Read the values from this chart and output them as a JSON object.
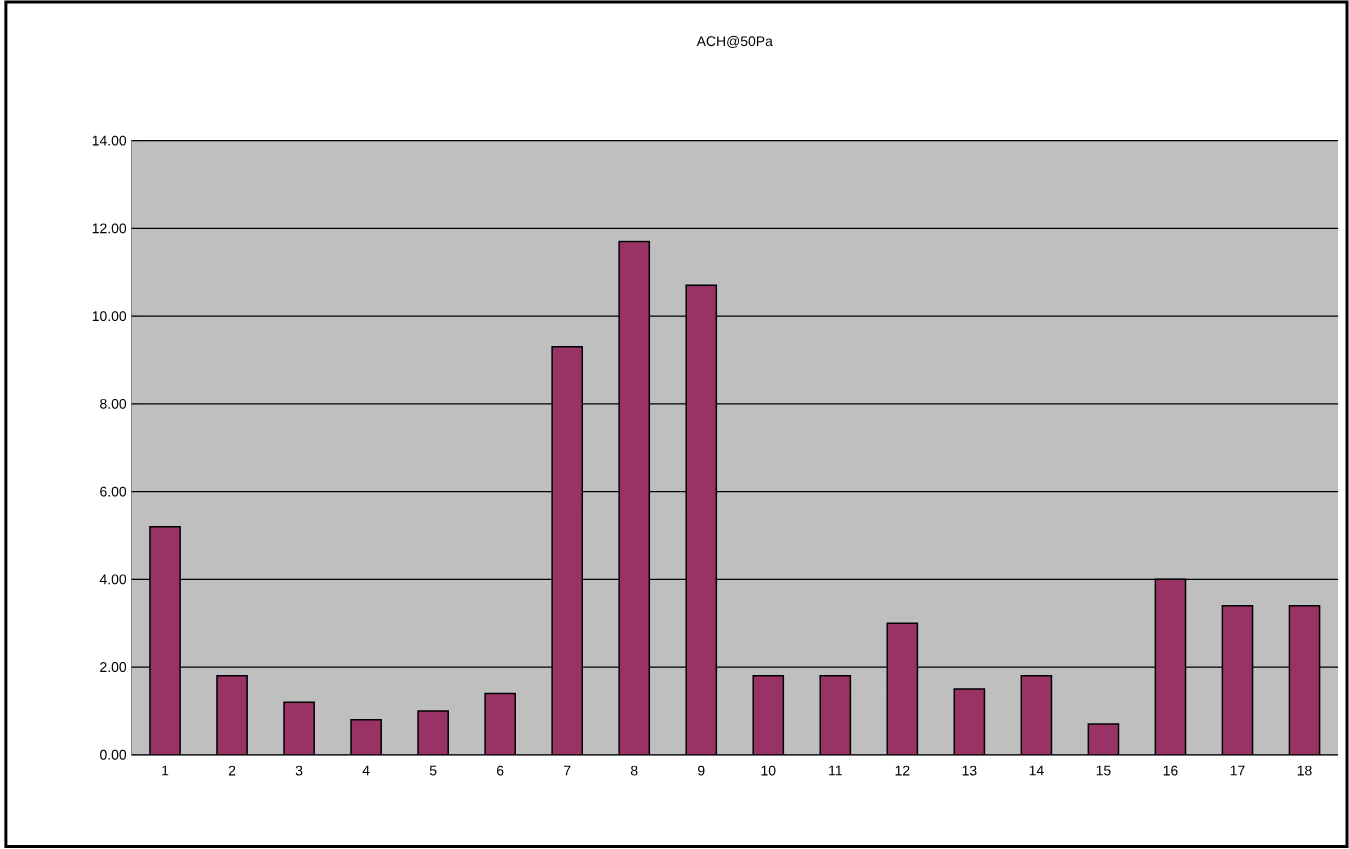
{
  "chart_data": {
    "type": "bar",
    "title": "ACH@50Pa",
    "categories": [
      "1",
      "2",
      "3",
      "4",
      "5",
      "6",
      "7",
      "8",
      "9",
      "10",
      "11",
      "12",
      "13",
      "14",
      "15",
      "16",
      "17",
      "18"
    ],
    "values": [
      5.2,
      1.8,
      1.2,
      0.8,
      1.0,
      1.4,
      9.3,
      11.7,
      10.7,
      1.8,
      1.8,
      3.0,
      1.5,
      1.8,
      0.7,
      4.0,
      3.4,
      3.4
    ],
    "color": "#993366",
    "ylim": [
      0,
      14
    ],
    "yticks": [
      {
        "value": 0,
        "label": "0.00"
      },
      {
        "value": 2,
        "label": "2.00"
      },
      {
        "value": 4,
        "label": "4.00"
      },
      {
        "value": 6,
        "label": "6.00"
      },
      {
        "value": 8,
        "label": "8.00"
      },
      {
        "value": 10,
        "label": "10.00"
      },
      {
        "value": 12,
        "label": "12.00"
      },
      {
        "value": 14,
        "label": "14.00"
      }
    ],
    "grid": "y"
  }
}
